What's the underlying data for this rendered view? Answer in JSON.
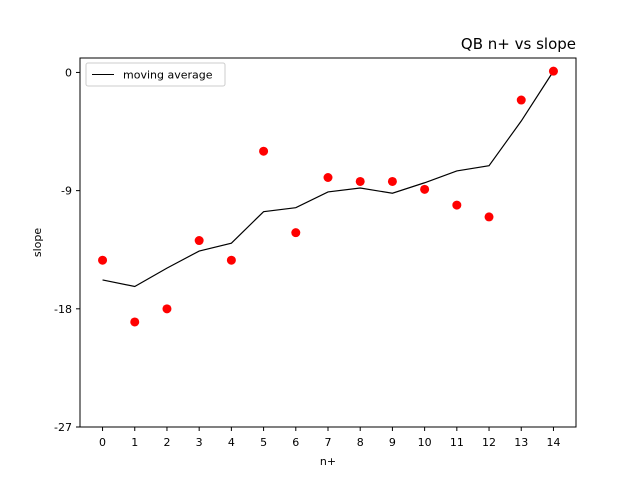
{
  "chart_data": {
    "type": "scatter",
    "title": "QB n+ vs slope",
    "xlabel": "n+",
    "ylabel": "slope",
    "xlim": [
      -0.7,
      14.7
    ],
    "ylim": [
      -27,
      1.1
    ],
    "xticks": [
      0,
      1,
      2,
      3,
      4,
      5,
      6,
      7,
      8,
      9,
      10,
      11,
      12,
      13,
      14
    ],
    "yticks": [
      0,
      -9,
      -18,
      -27
    ],
    "grid": false,
    "legend_position": "upper-left",
    "series": [
      {
        "name": "",
        "kind": "scatter",
        "color": "#ff0000",
        "x": [
          0,
          1,
          2,
          3,
          4,
          5,
          6,
          7,
          8,
          9,
          10,
          11,
          12,
          13,
          14
        ],
        "y": [
          -14.3,
          -19.0,
          -18.0,
          -12.8,
          -14.3,
          -6.0,
          -12.2,
          -8.0,
          -8.3,
          -8.3,
          -8.9,
          -10.1,
          -11.0,
          -2.1,
          0.1
        ]
      },
      {
        "name": "moving average",
        "kind": "line",
        "color": "#000000",
        "x": [
          0,
          1,
          2,
          3,
          4,
          5,
          6,
          7,
          8,
          9,
          10,
          11,
          12,
          13,
          14
        ],
        "y": [
          -15.8,
          -16.3,
          -14.9,
          -13.6,
          -13.0,
          -10.6,
          -10.3,
          -9.1,
          -8.8,
          -9.2,
          -8.4,
          -7.5,
          -7.1,
          -3.7,
          0.1
        ]
      }
    ]
  }
}
